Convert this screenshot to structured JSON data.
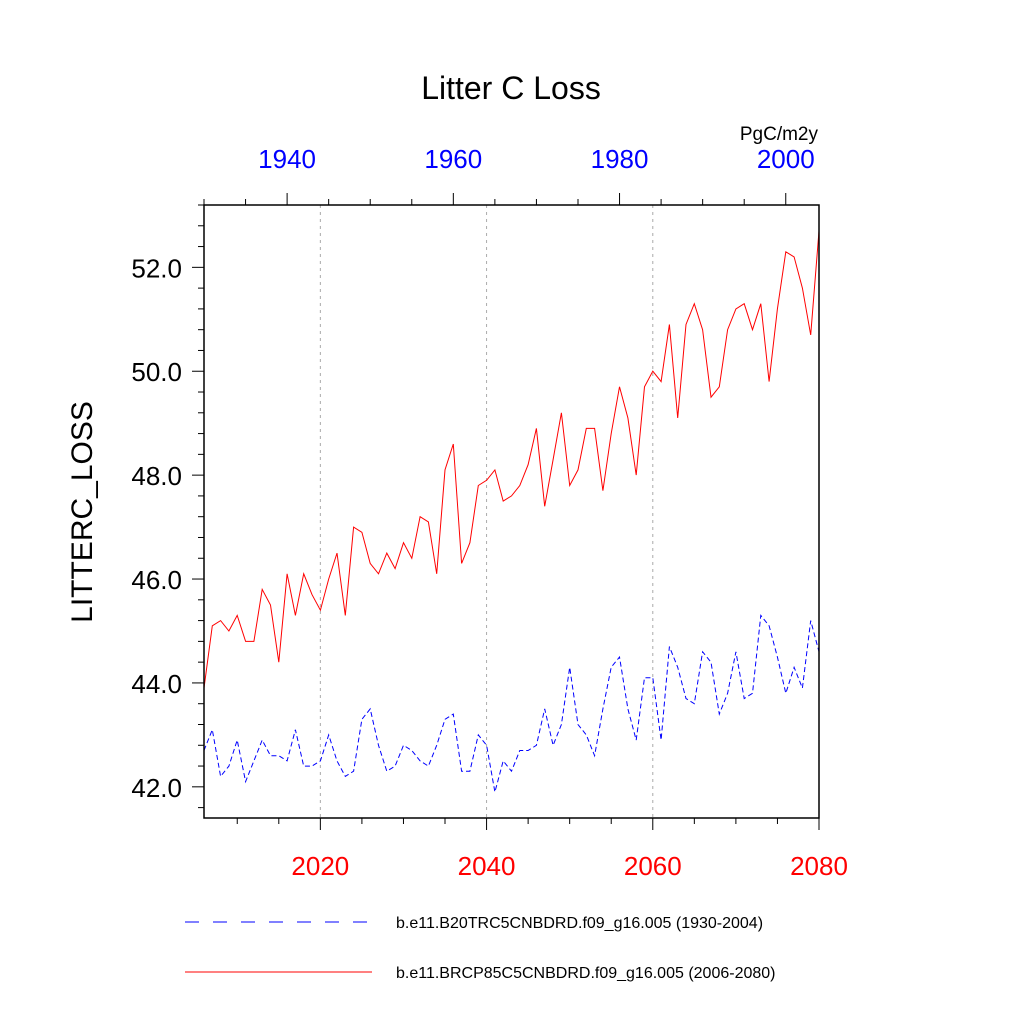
{
  "chart_data": {
    "type": "line",
    "title": "Litter C Loss",
    "ylabel": "LITTERC_LOSS",
    "units": "PgC/m2y",
    "ylim": [
      41.4,
      53.2
    ],
    "yticks": [
      42.0,
      44.0,
      46.0,
      48.0,
      50.0,
      52.0
    ],
    "ytick_labels": [
      "42.0",
      "44.0",
      "46.0",
      "48.0",
      "50.0",
      "52.0"
    ],
    "bottom_axis": {
      "range": [
        2006,
        2080
      ],
      "ticks": [
        2020,
        2040,
        2060,
        2080
      ],
      "tick_labels": [
        "2020",
        "2040",
        "2060",
        "2080"
      ],
      "color": "#ff0000"
    },
    "top_axis": {
      "range": [
        1930,
        2004
      ],
      "ticks": [
        1940,
        1960,
        1980,
        2000
      ],
      "tick_labels": [
        "1940",
        "1960",
        "1980",
        "2000"
      ],
      "color": "#0000ff"
    },
    "grid": "vertical dotted at bottom-axis major ticks",
    "series": [
      {
        "name": "b.e11.BRCP85C5CNBDRD.f09_g16.005 (2006-2080)",
        "axis": "bottom",
        "color": "#ff0000",
        "dash": "solid",
        "x": [
          2006,
          2007,
          2008,
          2009,
          2010,
          2011,
          2012,
          2013,
          2014,
          2015,
          2016,
          2017,
          2018,
          2019,
          2020,
          2021,
          2022,
          2023,
          2024,
          2025,
          2026,
          2027,
          2028,
          2029,
          2030,
          2031,
          2032,
          2033,
          2034,
          2035,
          2036,
          2037,
          2038,
          2039,
          2040,
          2041,
          2042,
          2043,
          2044,
          2045,
          2046,
          2047,
          2048,
          2049,
          2050,
          2051,
          2052,
          2053,
          2054,
          2055,
          2056,
          2057,
          2058,
          2059,
          2060,
          2061,
          2062,
          2063,
          2064,
          2065,
          2066,
          2067,
          2068,
          2069,
          2070,
          2071,
          2072,
          2073,
          2074,
          2075,
          2076,
          2077,
          2078,
          2079,
          2080
        ],
        "values": [
          43.9,
          45.1,
          45.2,
          45.0,
          45.3,
          44.8,
          44.8,
          45.8,
          45.5,
          44.4,
          46.1,
          45.3,
          46.1,
          45.7,
          45.4,
          46.0,
          46.5,
          45.3,
          47.0,
          46.9,
          46.3,
          46.1,
          46.5,
          46.2,
          46.7,
          46.4,
          47.2,
          47.1,
          46.1,
          48.1,
          48.6,
          46.3,
          46.7,
          47.8,
          47.9,
          48.1,
          47.5,
          47.6,
          47.8,
          48.2,
          48.9,
          47.4,
          48.3,
          49.2,
          47.8,
          48.1,
          48.9,
          48.9,
          47.7,
          48.8,
          49.7,
          49.1,
          48.0,
          49.7,
          50.0,
          49.8,
          50.9,
          49.1,
          50.9,
          51.3,
          50.8,
          49.5,
          49.7,
          50.8,
          51.2,
          51.3,
          50.8,
          51.3,
          49.8,
          51.2,
          52.3,
          52.2,
          51.6,
          50.7,
          52.7
        ]
      },
      {
        "name": "b.e11.B20TRC5CNBDRD.f09_g16.005 (1930-2004)",
        "axis": "top",
        "color": "#0000ff",
        "dash": "dashed",
        "x": [
          1930,
          1931,
          1932,
          1933,
          1934,
          1935,
          1936,
          1937,
          1938,
          1939,
          1940,
          1941,
          1942,
          1943,
          1944,
          1945,
          1946,
          1947,
          1948,
          1949,
          1950,
          1951,
          1952,
          1953,
          1954,
          1955,
          1956,
          1957,
          1958,
          1959,
          1960,
          1961,
          1962,
          1963,
          1964,
          1965,
          1966,
          1967,
          1968,
          1969,
          1970,
          1971,
          1972,
          1973,
          1974,
          1975,
          1976,
          1977,
          1978,
          1979,
          1980,
          1981,
          1982,
          1983,
          1984,
          1985,
          1986,
          1987,
          1988,
          1989,
          1990,
          1991,
          1992,
          1993,
          1994,
          1995,
          1996,
          1997,
          1998,
          1999,
          2000,
          2001,
          2002,
          2003,
          2004
        ],
        "values": [
          42.7,
          43.1,
          42.2,
          42.4,
          42.9,
          42.1,
          42.5,
          42.9,
          42.6,
          42.6,
          42.5,
          43.1,
          42.4,
          42.4,
          42.5,
          43.0,
          42.5,
          42.2,
          42.3,
          43.3,
          43.5,
          42.8,
          42.3,
          42.4,
          42.8,
          42.7,
          42.5,
          42.4,
          42.8,
          43.3,
          43.4,
          42.3,
          42.3,
          43.0,
          42.8,
          41.9,
          42.5,
          42.3,
          42.7,
          42.7,
          42.8,
          43.5,
          42.8,
          43.2,
          44.3,
          43.2,
          43.0,
          42.6,
          43.5,
          44.3,
          44.5,
          43.5,
          42.9,
          44.1,
          44.1,
          42.9,
          44.7,
          44.3,
          43.7,
          43.6,
          44.6,
          44.4,
          43.4,
          43.8,
          44.6,
          43.7,
          43.8,
          45.3,
          45.1,
          44.5,
          43.8,
          44.3,
          43.9,
          45.2,
          44.6
        ]
      }
    ]
  },
  "legend": {
    "items": [
      {
        "label": "b.e11.B20TRC5CNBDRD.f09_g16.005 (1930-2004)",
        "color": "#0000ff",
        "dash": "dashed"
      },
      {
        "label": "b.e11.BRCP85C5CNBDRD.f09_g16.005 (2006-2080)",
        "color": "#ff0000",
        "dash": "solid"
      }
    ]
  }
}
